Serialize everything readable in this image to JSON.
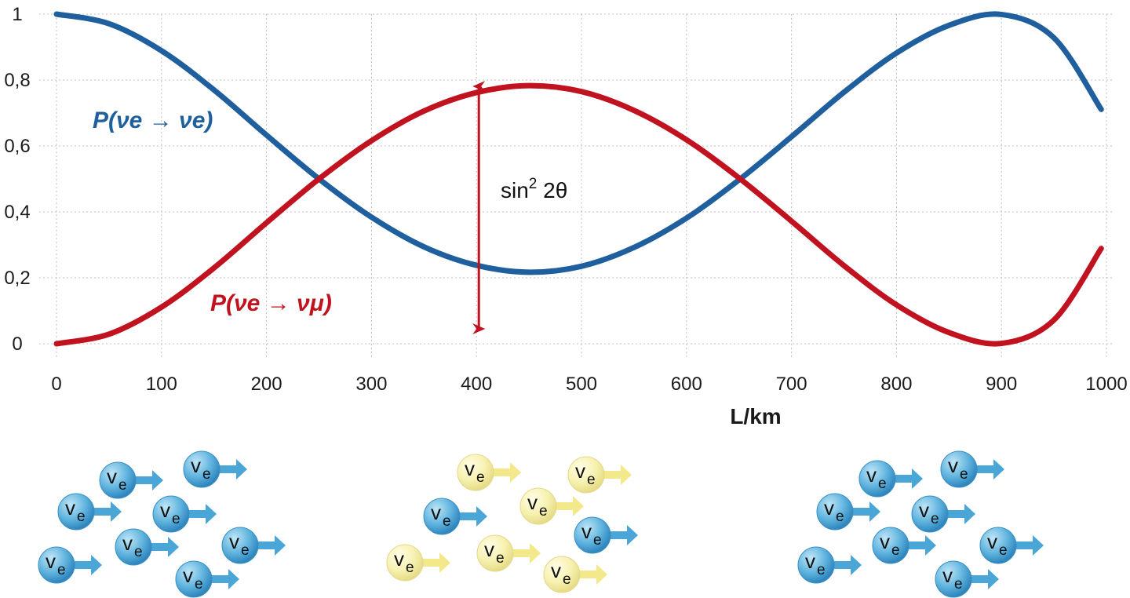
{
  "chart_data": {
    "type": "line",
    "title": "",
    "xlabel": "L/km",
    "ylabel": "",
    "xlim": [
      0,
      1000
    ],
    "ylim": [
      0,
      1
    ],
    "x_ticks": [
      "0",
      "100",
      "200",
      "300",
      "400",
      "500",
      "600",
      "700",
      "800",
      "900",
      "1000"
    ],
    "y_ticks": [
      "0",
      "0,2",
      "0,4",
      "0,6",
      "0,8",
      "1"
    ],
    "grid": true,
    "series": [
      {
        "name": "P(νe → νe)",
        "color": "#1f5f9e",
        "x": [
          0,
          50,
          100,
          150,
          200,
          250,
          300,
          350,
          400,
          450,
          500,
          550,
          600,
          650,
          700,
          750,
          800,
          850,
          900,
          950,
          995
        ],
        "y": [
          1.0,
          0.971,
          0.889,
          0.77,
          0.633,
          0.5,
          0.384,
          0.294,
          0.238,
          0.217,
          0.235,
          0.292,
          0.381,
          0.497,
          0.628,
          0.763,
          0.882,
          0.966,
          0.999,
          0.928,
          0.711
        ]
      },
      {
        "name": "P(νe → νμ)",
        "color": "#c0121f",
        "x": [
          0,
          50,
          100,
          150,
          200,
          250,
          300,
          350,
          400,
          450,
          500,
          550,
          600,
          650,
          700,
          750,
          800,
          850,
          900,
          950,
          995
        ],
        "y": [
          0.0,
          0.029,
          0.111,
          0.23,
          0.367,
          0.5,
          0.616,
          0.706,
          0.762,
          0.783,
          0.765,
          0.708,
          0.619,
          0.503,
          0.372,
          0.237,
          0.118,
          0.034,
          0.001,
          0.072,
          0.289
        ]
      }
    ],
    "annotations": [
      {
        "text_base": "sin",
        "text_sup": "2",
        "text_tail": " 2θ",
        "type": "double-arrow",
        "x": 400,
        "y_from": 0.05,
        "y_to": 0.8,
        "color": "#c0121f"
      }
    ]
  },
  "particle_groups": [
    {
      "label": "v",
      "sub": "e",
      "particles": [
        {
          "flavor": "e"
        },
        {
          "flavor": "e"
        },
        {
          "flavor": "e"
        },
        {
          "flavor": "e"
        },
        {
          "flavor": "e"
        },
        {
          "flavor": "e"
        },
        {
          "flavor": "e"
        },
        {
          "flavor": "e"
        }
      ]
    },
    {
      "label": "v",
      "sub": "e",
      "particles": [
        {
          "flavor": "mu"
        },
        {
          "flavor": "mu"
        },
        {
          "flavor": "e"
        },
        {
          "flavor": "mu"
        },
        {
          "flavor": "e"
        },
        {
          "flavor": "mu"
        },
        {
          "flavor": "mu"
        },
        {
          "flavor": "mu"
        }
      ]
    },
    {
      "label": "v",
      "sub": "e",
      "particles": [
        {
          "flavor": "e"
        },
        {
          "flavor": "e"
        },
        {
          "flavor": "e"
        },
        {
          "flavor": "e"
        },
        {
          "flavor": "e"
        },
        {
          "flavor": "e"
        },
        {
          "flavor": "e"
        },
        {
          "flavor": "e"
        }
      ]
    }
  ],
  "colors": {
    "electron_ball": "#4aa6d6",
    "electron_arrow": "#4aa6d6",
    "muon_ball": "#f5efa3",
    "muon_arrow": "#f3e98a",
    "grid": "#bfbfbf"
  }
}
